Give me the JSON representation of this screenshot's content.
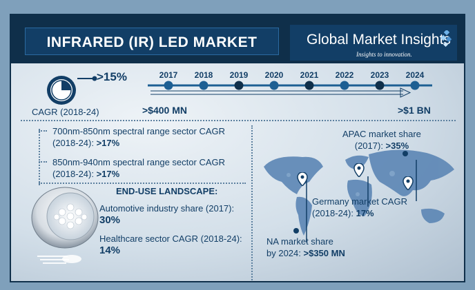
{
  "header": {
    "title": "INFRARED (IR) LED MARKET",
    "brand": "Global Market Insights",
    "tagline": "Insights to innovation."
  },
  "cagr": {
    "value": ">15%",
    "label": "CAGR (2018-24)"
  },
  "timeline": {
    "years": [
      "2017",
      "2018",
      "2019",
      "2020",
      "2021",
      "2022",
      "2023",
      "2024"
    ],
    "start_value": ">$400 MN",
    "end_value": ">$1 BN"
  },
  "spectral": {
    "item1_line1": "700nm-850nm spectral range sector CAGR",
    "item1_line2": "(2018-24): ",
    "item1_value": ">17%",
    "item2_line1": "850nm-940nm spectral range sector CAGR",
    "item2_line2": "(2018-24): ",
    "item2_value": ">17%"
  },
  "end_use": {
    "heading": "END-USE LANDSCAPE:",
    "auto_label": "Automotive industry share (2017):",
    "auto_value": "30%",
    "health_label": "Healthcare sector CAGR (2018-24):",
    "health_value": "14%"
  },
  "regions": {
    "apac_line1": "APAC market share",
    "apac_line2": "(2017): ",
    "apac_value": ">35%",
    "germany_line1": "Germany market CAGR",
    "germany_line2": "(2018-24): ",
    "germany_value": "17%",
    "na_line1": "NA market share",
    "na_line2": "by 2024: ",
    "na_value": ">$350 MN"
  },
  "colors": {
    "navy": "#0f2f4a",
    "title_blue": "#123e66",
    "accent": "#1d5f93"
  }
}
